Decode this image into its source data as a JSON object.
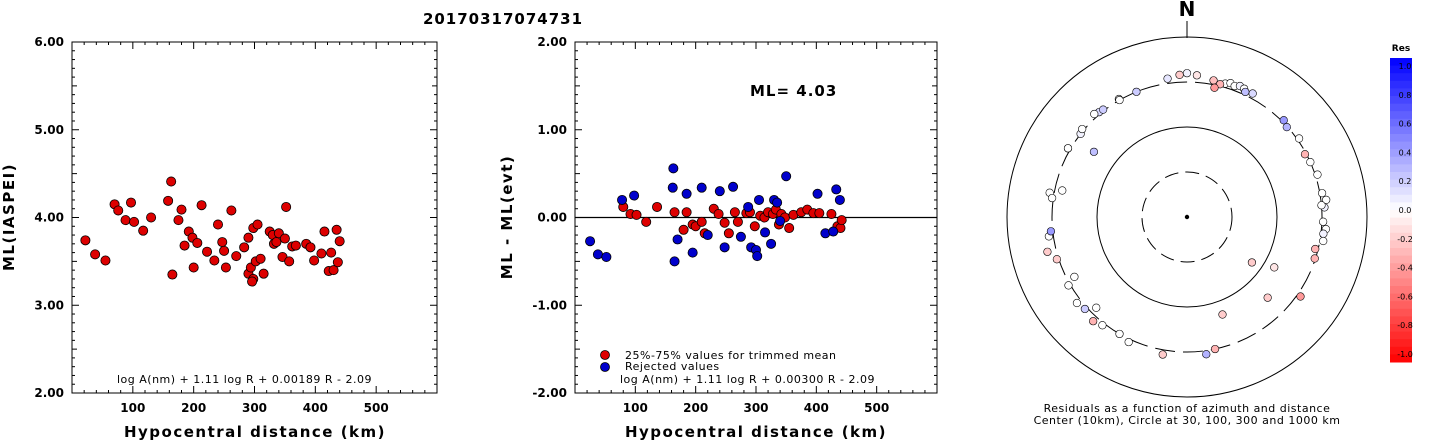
{
  "event_id": "20170317074731",
  "chart_data": [
    {
      "type": "scatter",
      "xlabel": "Hypocentral distance (km)",
      "ylabel": "ML(IASPEI)",
      "xlim": [
        0,
        600
      ],
      "ylim": [
        2.0,
        6.0
      ],
      "xticks": [
        "100",
        "200",
        "300",
        "400",
        "500"
      ],
      "yticks": [
        "2.00",
        "3.00",
        "4.00",
        "5.00",
        "6.00"
      ],
      "formula": "log A(nm) + 1.11 log R + 0.00189 R - 2.09",
      "series": [
        {
          "color": "#dd0000",
          "points": [
            [
              22,
              3.74
            ],
            [
              38,
              3.58
            ],
            [
              55,
              3.51
            ],
            [
              70,
              4.15
            ],
            [
              76,
              4.08
            ],
            [
              88,
              3.97
            ],
            [
              97,
              4.17
            ],
            [
              102,
              3.95
            ],
            [
              117,
              3.85
            ],
            [
              130,
              4.0
            ],
            [
              158,
              4.19
            ],
            [
              163,
              4.41
            ],
            [
              165,
              3.35
            ],
            [
              175,
              3.97
            ],
            [
              180,
              4.09
            ],
            [
              185,
              3.68
            ],
            [
              192,
              3.84
            ],
            [
              198,
              3.77
            ],
            [
              200,
              3.43
            ],
            [
              206,
              3.71
            ],
            [
              213,
              4.14
            ],
            [
              222,
              3.61
            ],
            [
              234,
              3.51
            ],
            [
              240,
              3.92
            ],
            [
              247,
              3.72
            ],
            [
              250,
              3.62
            ],
            [
              253,
              3.43
            ],
            [
              262,
              4.08
            ],
            [
              270,
              3.56
            ],
            [
              283,
              3.66
            ],
            [
              290,
              3.77
            ],
            [
              290,
              3.36
            ],
            [
              294,
              3.43
            ],
            [
              298,
              3.3
            ],
            [
              298,
              3.88
            ],
            [
              302,
              3.5
            ],
            [
              305,
              3.92
            ],
            [
              310,
              3.53
            ],
            [
              315,
              3.36
            ],
            [
              325,
              3.84
            ],
            [
              330,
              3.8
            ],
            [
              332,
              3.7
            ],
            [
              336,
              3.72
            ],
            [
              340,
              3.82
            ],
            [
              346,
              3.55
            ],
            [
              350,
              3.76
            ],
            [
              352,
              4.12
            ],
            [
              357,
              3.5
            ],
            [
              362,
              3.67
            ],
            [
              368,
              3.68
            ],
            [
              385,
              3.7
            ],
            [
              392,
              3.66
            ],
            [
              398,
              3.51
            ],
            [
              410,
              3.59
            ],
            [
              415,
              3.84
            ],
            [
              422,
              3.39
            ],
            [
              426,
              3.6
            ],
            [
              430,
              3.4
            ],
            [
              435,
              3.86
            ],
            [
              437,
              3.49
            ],
            [
              440,
              3.73
            ],
            [
              296,
              3.27
            ]
          ]
        }
      ]
    },
    {
      "type": "scatter",
      "xlabel": "Hypocentral distance (km)",
      "ylabel": "ML - ML(evt)",
      "xlim": [
        0,
        600
      ],
      "ylim": [
        -2.0,
        2.0
      ],
      "xticks": [
        "100",
        "200",
        "300",
        "400",
        "500"
      ],
      "yticks": [
        "-2.00",
        "-1.00",
        "0.00",
        "1.00",
        "2.00"
      ],
      "reference_line": 0.0,
      "annotation": "ML= 4.03",
      "formula": "log A(nm) + 1.11 log R + 0.00300 R - 2.09",
      "series": [
        {
          "name": "25%-75% values for trimmed mean",
          "color": "#dd0000",
          "points": [
            [
              80,
              0.12
            ],
            [
              92,
              0.04
            ],
            [
              102,
              0.03
            ],
            [
              118,
              -0.05
            ],
            [
              136,
              0.12
            ],
            [
              165,
              0.06
            ],
            [
              185,
              0.06
            ],
            [
              195,
              -0.08
            ],
            [
              200,
              -0.1
            ],
            [
              210,
              -0.05
            ],
            [
              215,
              -0.18
            ],
            [
              230,
              0.1
            ],
            [
              238,
              0.04
            ],
            [
              248,
              -0.06
            ],
            [
              255,
              -0.18
            ],
            [
              265,
              0.06
            ],
            [
              270,
              -0.05
            ],
            [
              284,
              0.05
            ],
            [
              290,
              0.06
            ],
            [
              298,
              -0.1
            ],
            [
              307,
              0.02
            ],
            [
              314,
              0.0
            ],
            [
              320,
              0.06
            ],
            [
              328,
              0.04
            ],
            [
              333,
              0.09
            ],
            [
              338,
              -0.08
            ],
            [
              342,
              0.04
            ],
            [
              348,
              0.0
            ],
            [
              355,
              -0.12
            ],
            [
              362,
              0.03
            ],
            [
              375,
              0.06
            ],
            [
              385,
              0.09
            ],
            [
              395,
              0.05
            ],
            [
              405,
              0.05
            ],
            [
              425,
              0.04
            ],
            [
              435,
              -0.1
            ],
            [
              440,
              -0.12
            ],
            [
              442,
              -0.03
            ],
            [
              180,
              -0.14
            ]
          ]
        },
        {
          "name": "Rejected values",
          "color": "#0000cc",
          "points": [
            [
              25,
              -0.27
            ],
            [
              38,
              -0.42
            ],
            [
              52,
              -0.45
            ],
            [
              78,
              0.2
            ],
            [
              98,
              0.25
            ],
            [
              162,
              0.34
            ],
            [
              163,
              0.56
            ],
            [
              165,
              -0.5
            ],
            [
              170,
              -0.25
            ],
            [
              185,
              0.27
            ],
            [
              195,
              -0.4
            ],
            [
              210,
              0.34
            ],
            [
              220,
              -0.2
            ],
            [
              240,
              0.3
            ],
            [
              248,
              -0.34
            ],
            [
              262,
              0.35
            ],
            [
              275,
              -0.22
            ],
            [
              287,
              0.12
            ],
            [
              292,
              -0.34
            ],
            [
              300,
              -0.37
            ],
            [
              302,
              -0.44
            ],
            [
              305,
              0.2
            ],
            [
              315,
              -0.17
            ],
            [
              325,
              -0.3
            ],
            [
              330,
              0.2
            ],
            [
              335,
              0.17
            ],
            [
              340,
              -0.04
            ],
            [
              350,
              0.47
            ],
            [
              402,
              0.27
            ],
            [
              415,
              -0.18
            ],
            [
              428,
              -0.16
            ],
            [
              433,
              0.32
            ],
            [
              439,
              0.2
            ]
          ]
        }
      ]
    },
    {
      "type": "polar",
      "caption_line1": "Residuals as a function of azimuth and distance",
      "caption_line2": "Center (10km), Circle at 30, 100, 300 and 1000 km",
      "north_label": "N",
      "colorbar_title": "Res",
      "colorbar_ticks": [
        "1.0",
        "0.8",
        "0.6",
        "0.4",
        "0.2",
        "0.0",
        "-0.2",
        "-0.4",
        "-0.6",
        "-0.8",
        "-1.0"
      ],
      "rings_km": [
        30,
        100,
        300,
        1000
      ],
      "points_note": "each point: azimuth_deg, distance_km, residual",
      "points": [
        [
          -8,
          340,
          0.1
        ],
        [
          -3,
          365,
          -0.2
        ],
        [
          0,
          380,
          0.05
        ],
        [
          4,
          362,
          -0.1
        ],
        [
          11,
          335,
          -0.25
        ],
        [
          16,
          332,
          0.0
        ],
        [
          18,
          350,
          0.0
        ],
        [
          20,
          337,
          0.0
        ],
        [
          22,
          355,
          0.05
        ],
        [
          24,
          347,
          0.0
        ],
        [
          28,
          342,
          0.15
        ],
        [
          25,
          325,
          0.25
        ],
        [
          14,
          315,
          -0.3
        ],
        [
          12,
          280,
          -0.4
        ],
        [
          -22,
          300,
          0.2
        ],
        [
          -30,
          310,
          0.0
        ],
        [
          -40,
          315,
          0.15
        ],
        [
          -52,
          300,
          0.05
        ],
        [
          -60,
          320,
          0.0
        ],
        [
          -55,
          178,
          0.25
        ],
        [
          45,
          315,
          0.4
        ],
        [
          48,
          295,
          0.3
        ],
        [
          55,
          315,
          0.0
        ],
        [
          62,
          290,
          -0.3
        ],
        [
          66,
          300,
          0.0
        ],
        [
          72,
          318,
          0.0
        ],
        [
          80,
          318,
          0.0
        ],
        [
          83,
          345,
          0.0
        ],
        [
          86,
          323,
          0.05
        ],
        [
          92,
          310,
          0.0
        ],
        [
          95,
          338,
          0.0
        ],
        [
          97,
          320,
          0.05
        ],
        [
          100,
          328,
          0.0
        ],
        [
          85,
          300,
          0.0
        ],
        [
          104,
          280,
          -0.3
        ],
        [
          108,
          295,
          -0.3
        ],
        [
          125,
          330,
          -0.4
        ],
        [
          135,
          180,
          -0.2
        ],
        [
          120,
          130,
          -0.1
        ],
        [
          125,
          75,
          -0.2
        ],
        [
          160,
          140,
          -0.2
        ],
        [
          172,
          330,
          0.3
        ],
        [
          168,
          300,
          -0.3
        ],
        [
          190,
          340,
          -0.2
        ],
        [
          205,
          325,
          0.0
        ],
        [
          210,
          300,
          0.0
        ],
        [
          218,
          320,
          0.0
        ],
        [
          222,
          345,
          -0.3
        ],
        [
          225,
          255,
          0.0
        ],
        [
          228,
          320,
          0.2
        ],
        [
          232,
          340,
          0.0
        ],
        [
          240,
          315,
          0.0
        ],
        [
          242,
          250,
          0.0
        ],
        [
          252,
          315,
          -0.2
        ],
        [
          256,
          380,
          -0.2
        ],
        [
          262,
          338,
          0.0
        ],
        [
          264,
          315,
          0.4
        ],
        [
          280,
          338,
          0.0
        ],
        [
          278,
          310,
          0.0
        ],
        [
          282,
          250,
          0.0
        ],
        [
          300,
          320,
          0.0
        ],
        [
          310,
          315,
          0.0
        ],
        [
          318,
          330,
          0.0
        ],
        [
          322,
          310,
          0.2
        ],
        [
          330,
          300,
          0.0
        ]
      ]
    }
  ]
}
